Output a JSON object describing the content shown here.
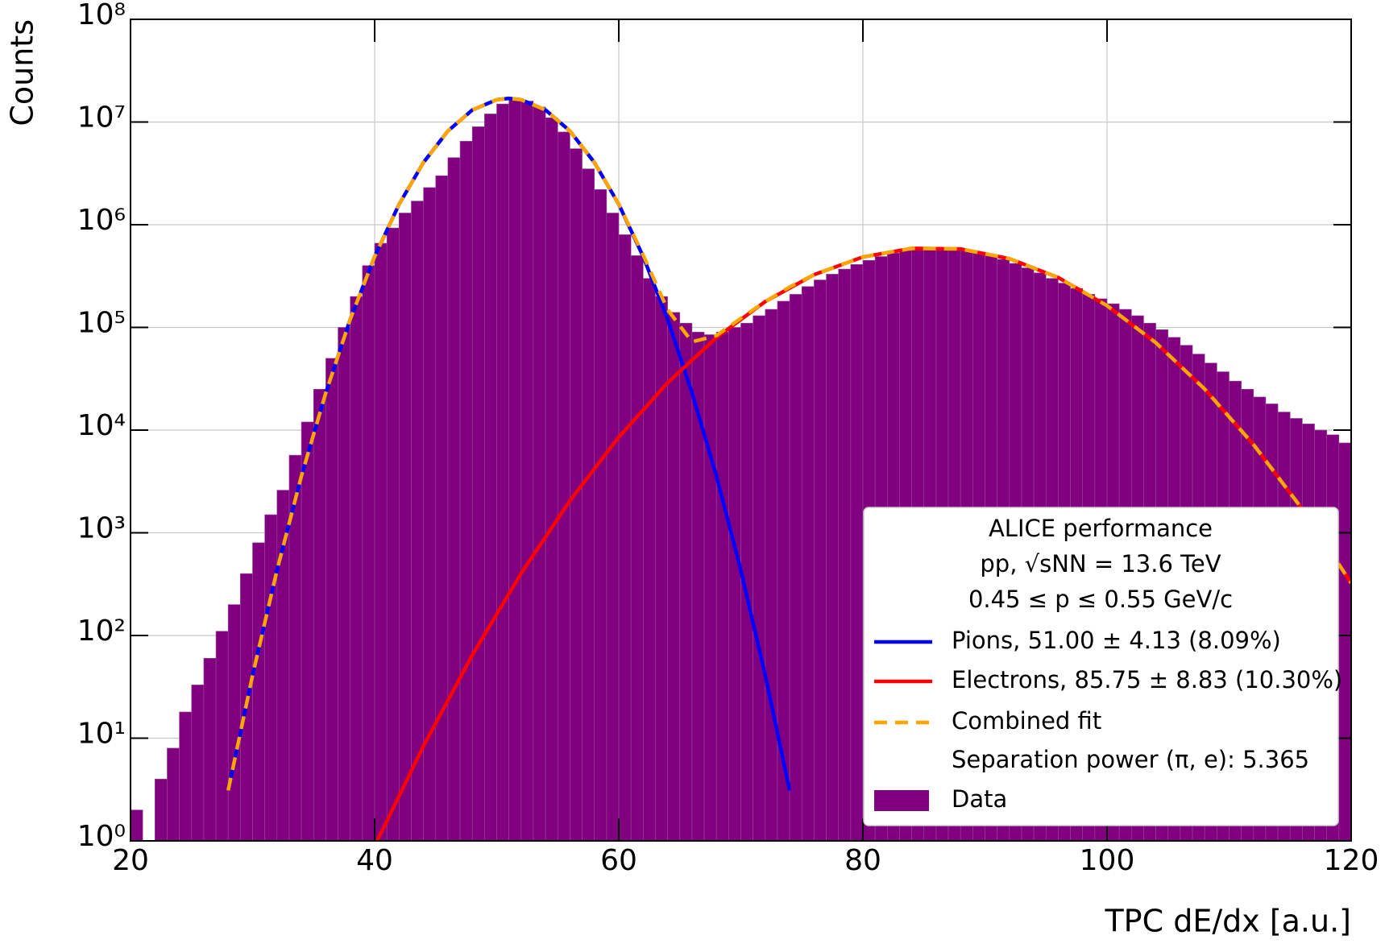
{
  "chart_data": {
    "type": "histogram",
    "x_label": "TPC dE/dx [a.u.]",
    "y_label": "Counts",
    "log_y": true,
    "grid": true,
    "name": "Data",
    "color": "#800080",
    "bins": [
      20,
      21,
      22,
      23,
      24,
      25,
      26,
      27,
      28,
      29,
      30,
      31,
      32,
      33,
      34,
      35,
      36,
      37,
      38,
      39,
      40,
      41,
      42,
      43,
      44,
      45,
      46,
      47,
      48,
      49,
      50,
      51,
      52,
      53,
      54,
      55,
      56,
      57,
      58,
      59,
      60,
      61,
      62,
      63,
      64,
      65,
      66,
      67,
      68,
      69,
      70,
      71,
      72,
      73,
      74,
      75,
      76,
      77,
      78,
      79,
      80,
      81,
      82,
      83,
      84,
      85,
      86,
      87,
      88,
      89,
      90,
      91,
      92,
      93,
      94,
      95,
      96,
      97,
      98,
      99,
      100,
      101,
      102,
      103,
      104,
      105,
      106,
      107,
      108,
      109,
      110,
      111,
      112,
      113,
      114,
      115,
      116,
      117,
      118,
      119,
      120
    ],
    "values": [
      2,
      0,
      4,
      8,
      18,
      33,
      60,
      110,
      200,
      400,
      800,
      1500,
      2600,
      5700,
      12000,
      25000,
      50000,
      100000,
      200000,
      400000,
      660000,
      930000,
      1300000,
      1700000,
      2300000,
      3000000,
      4500000,
      6500000,
      9000000,
      12000000,
      15000000,
      17000000,
      16000000,
      14000000,
      11000000,
      8000000,
      5500000,
      3500000,
      2200000,
      1300000,
      800000,
      500000,
      300000,
      200000,
      140000,
      110000,
      90000,
      85000,
      90000,
      100000,
      110000,
      130000,
      150000,
      180000,
      210000,
      250000,
      290000,
      330000,
      370000,
      410000,
      450000,
      490000,
      530000,
      560000,
      580000,
      590000,
      590000,
      580000,
      560000,
      530000,
      500000,
      460000,
      420000,
      380000,
      340000,
      300000,
      270000,
      240000,
      210000,
      190000,
      170000,
      150000,
      130000,
      110000,
      95000,
      80000,
      67000,
      55000,
      45000,
      37000,
      30000,
      25000,
      21000,
      18000,
      15000,
      13000,
      11500,
      10000,
      9000,
      7500
    ],
    "series": [
      {
        "name": "Pions, 51.00 ± 4.13 (8.09%)",
        "color": "#0000ff",
        "dashed": false,
        "x": [
          28,
          30,
          32,
          34,
          36,
          38,
          40,
          42,
          44,
          46,
          48,
          50,
          51,
          52,
          54,
          56,
          58,
          60,
          62,
          64,
          66,
          68,
          70,
          72,
          74
        ],
        "values": [
          3.1,
          41,
          432,
          3570,
          23100,
          120000,
          490000,
          1580000,
          4040000,
          8170000,
          13100000,
          16500000,
          17000000,
          16500000,
          13100000,
          8170000,
          4040000,
          1580000,
          490000,
          120000,
          23100,
          3570,
          432,
          41,
          3.1
        ]
      },
      {
        "name": "Electrons, 85.75 ± 8.83 (10.30%)",
        "color": "#ff0000",
        "dashed": false,
        "x": [
          40,
          44,
          48,
          52,
          56,
          60,
          64,
          68,
          72,
          76,
          80,
          84,
          88,
          92,
          96,
          100,
          104,
          108,
          112,
          116,
          120
        ],
        "values": [
          0.89,
          8.4,
          64.5,
          403,
          2057,
          8540,
          28900,
          79600,
          178500,
          326000,
          485000,
          588000,
          581000,
          467000,
          306000,
          163000,
          70900,
          25100,
          7230,
          1698,
          325
        ]
      },
      {
        "name": "Combined fit",
        "color": "#ffa500",
        "dashed": true,
        "x": [
          28,
          30,
          32,
          34,
          36,
          38,
          40,
          42,
          44,
          46,
          48,
          50,
          51,
          52,
          54,
          56,
          58,
          60,
          62,
          64,
          66,
          68,
          70,
          72,
          74,
          76,
          80,
          84,
          88,
          92,
          96,
          100,
          104,
          108,
          112,
          116,
          120
        ],
        "values": [
          3.1,
          41,
          432,
          3570,
          23100,
          120000,
          490000,
          1580000,
          4040000,
          8170000,
          13100000,
          16500000,
          17000000,
          16500000,
          13100000,
          8170000,
          4044000,
          1589000,
          506000,
          149000,
          72300,
          83200,
          122700,
          178500,
          247600,
          326000,
          485000,
          588000,
          581000,
          467000,
          306000,
          163000,
          70900,
          25100,
          7230,
          1698,
          325
        ]
      }
    ],
    "legend_header": [
      "ALICE performance",
      "pp, √sNN = 13.6 TeV",
      "0.45 ≤ p ≤ 0.55 GeV/c"
    ],
    "annotation": "Separation power (π, e): 5.365",
    "legend_position": "lower right",
    "xlim": [
      20,
      120
    ],
    "xticks": [
      20,
      40,
      60,
      80,
      100,
      120
    ],
    "ylim": [
      1,
      100000000
    ],
    "yticks": [
      {
        "value": 1,
        "label": "10⁰"
      },
      {
        "value": 10,
        "label": "10¹"
      },
      {
        "value": 100,
        "label": "10²"
      },
      {
        "value": 1000,
        "label": "10³"
      },
      {
        "value": 10000,
        "label": "10⁴"
      },
      {
        "value": 100000,
        "label": "10⁵"
      },
      {
        "value": 1000000,
        "label": "10⁶"
      },
      {
        "value": 10000000,
        "label": "10⁷"
      },
      {
        "value": 100000000,
        "label": "10⁸"
      }
    ]
  }
}
